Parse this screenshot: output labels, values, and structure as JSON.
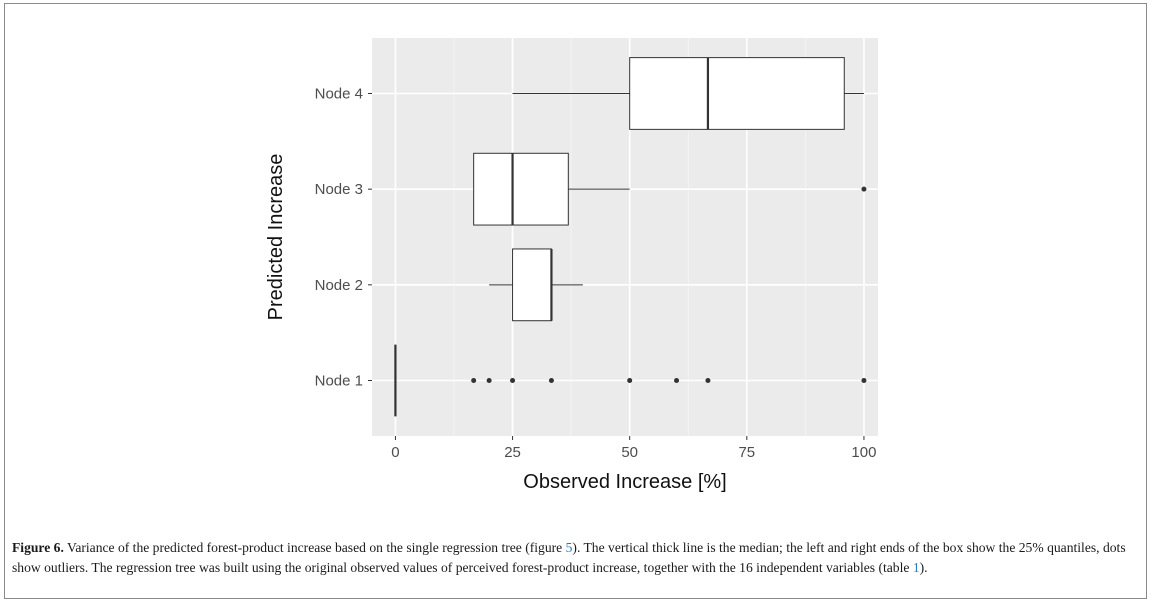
{
  "chart_data": {
    "type": "boxplot",
    "orientation": "horizontal",
    "xlabel": "Observed Increase [%]",
    "ylabel": "Predicted Increase",
    "xlim": [
      -5,
      103
    ],
    "x_ticks": [
      0,
      25,
      50,
      75,
      100
    ],
    "x_tick_labels": [
      "0",
      "25",
      "50",
      "75",
      "100"
    ],
    "grid": true,
    "panel_background": "#ebebeb",
    "categories": [
      "Node 1",
      "Node 2",
      "Node 3",
      "Node 4"
    ],
    "boxes": [
      {
        "category": "Node 1",
        "whisker_low": 0,
        "q1": 0,
        "median": 0,
        "q3": 0,
        "whisker_high": 0,
        "outliers": [
          16.7,
          20,
          25,
          33.3,
          50,
          60,
          66.7,
          100
        ]
      },
      {
        "category": "Node 2",
        "whisker_low": 20,
        "q1": 25,
        "median": 33.3,
        "q3": 33.3,
        "whisker_high": 40,
        "outliers": []
      },
      {
        "category": "Node 3",
        "whisker_low": 16.7,
        "q1": 16.7,
        "median": 25,
        "q3": 36.9,
        "whisker_high": 50,
        "outliers": [
          100
        ]
      },
      {
        "category": "Node 4",
        "whisker_low": 25,
        "q1": 50,
        "median": 66.7,
        "q3": 95.8,
        "whisker_high": 100,
        "outliers": []
      }
    ]
  },
  "caption": {
    "label": "Figure 6.",
    "text_1": " Variance of the predicted forest-product increase based on the single regression tree (figure ",
    "ref_figure": "5",
    "text_2": "). The vertical thick line is the median; the left and right ends of the box show the 25% quantiles, dots show outliers. The regression tree was built using the original observed values of perceived forest-product increase, together with the 16 independent variables (table ",
    "ref_table": "1",
    "text_3": ")."
  }
}
